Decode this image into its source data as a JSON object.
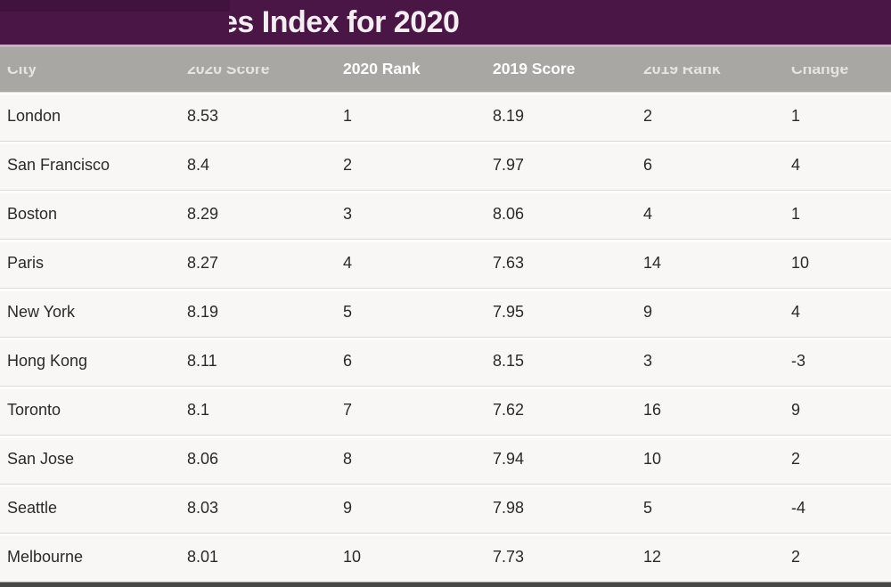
{
  "title_bar": {
    "title_visible": "es Index for 2020"
  },
  "chart_data": {
    "type": "table",
    "title": "es Index for 2020",
    "columns": [
      "City",
      "2020 Score",
      "2020 Rank",
      "2019 Score",
      "2019 Rank",
      "Change"
    ],
    "rows": [
      [
        "London",
        "8.53",
        "1",
        "8.19",
        "2",
        "1"
      ],
      [
        "San Francisco",
        "8.4",
        "2",
        "7.97",
        "6",
        "4"
      ],
      [
        "Boston",
        "8.29",
        "3",
        "8.06",
        "4",
        "1"
      ],
      [
        "Paris",
        "8.27",
        "4",
        "7.63",
        "14",
        "10"
      ],
      [
        "New York",
        "8.19",
        "5",
        "7.95",
        "9",
        "4"
      ],
      [
        "Hong Kong",
        "8.11",
        "6",
        "8.15",
        "3",
        "-3"
      ],
      [
        "Toronto",
        "8.1",
        "7",
        "7.62",
        "16",
        "9"
      ],
      [
        "San Jose",
        "8.06",
        "8",
        "7.94",
        "10",
        "2"
      ],
      [
        "Seattle",
        "8.03",
        "9",
        "7.98",
        "5",
        "-4"
      ],
      [
        "Melbourne",
        "8.01",
        "10",
        "7.73",
        "12",
        "2"
      ]
    ]
  },
  "colors": {
    "title_bar_bg": "#4a1646",
    "title_text": "#f4eef3",
    "accent_divider": "#c9b2c6",
    "header_bg": "#a9a7a3",
    "header_text": "#ffffff",
    "row_bg": "#f8f7f5",
    "row_text": "#2a2a2a",
    "row_separator": "#dadad8",
    "bottom_bar": "#474745"
  }
}
